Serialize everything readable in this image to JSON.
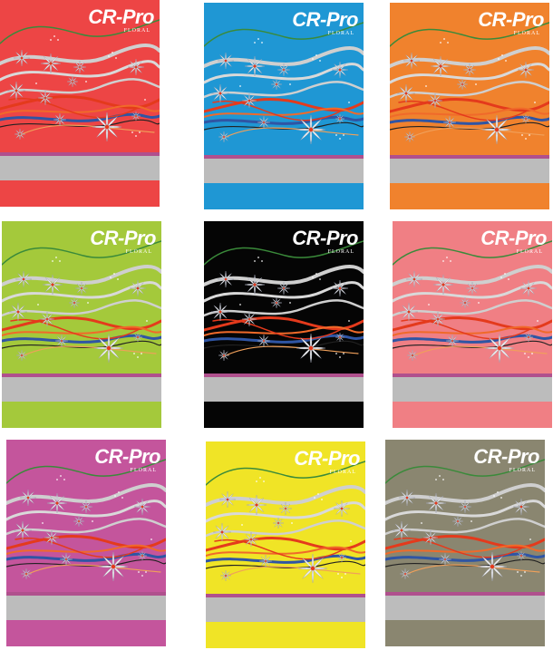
{
  "brand": {
    "title": "CR-Pro",
    "subtitle": "FLORAL"
  },
  "artwork": {
    "flower_color": "#f2f2f2",
    "wave_colors": [
      "#3a8a3a",
      "#cfcfcf",
      "#e43a1c",
      "#2f55a4",
      "#222222"
    ],
    "band_color": "#b0508d",
    "label_color": "#bcbcbc"
  },
  "covers": [
    {
      "name": "red",
      "color": "#ed4545"
    },
    {
      "name": "blue",
      "color": "#1f97d4"
    },
    {
      "name": "orange",
      "color": "#f0822d"
    },
    {
      "name": "lime",
      "color": "#a4c93b"
    },
    {
      "name": "black",
      "color": "#050505"
    },
    {
      "name": "pink",
      "color": "#f07f84"
    },
    {
      "name": "magenta",
      "color": "#c4559c"
    },
    {
      "name": "yellow",
      "color": "#f0e426"
    },
    {
      "name": "olive-gray",
      "color": "#8a8670"
    }
  ]
}
